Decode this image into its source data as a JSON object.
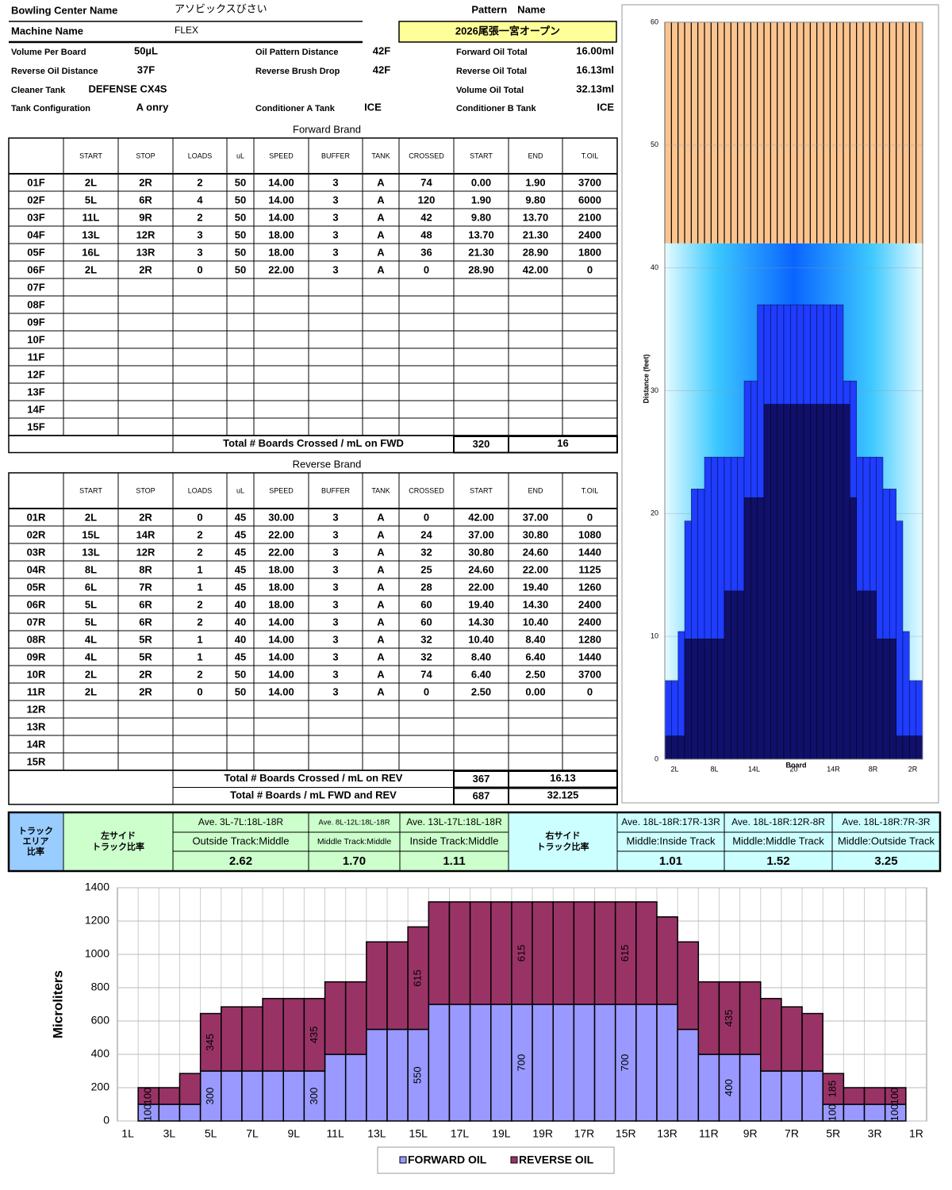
{
  "header": {
    "bowling_center": {
      "label": "Bowling Center Name",
      "value": "アソビックスびさい"
    },
    "machine": {
      "label": "Machine Name",
      "value": "FLEX"
    },
    "pattern": {
      "label": "Pattern　Name",
      "value": "2026尾張一宮オープン"
    },
    "fields": [
      {
        "label": "Volume Per Board",
        "value": "50µL"
      },
      {
        "label": "Oil Pattern Distance",
        "value": {
          "value": 42,
          "label": "42F"
        }
      },
      {
        "label": "Forward Oil Total",
        "value": "16.00ml"
      },
      {
        "label": "Reverse Oil Distance",
        "value": "37F"
      },
      {
        "label": "Reverse Brush Drop",
        "value": "42F"
      },
      {
        "label": "Reverse Oil Total",
        "value": "16.13ml"
      },
      {
        "label": "Cleaner Tank",
        "value": "DEFENSE CX4S"
      },
      {
        "label": "Volume Oil Total",
        "value": "32.13ml"
      },
      {
        "label": "Tank Configuration",
        "value": "A onry"
      },
      {
        "label": "Conditioner A Tank",
        "value": "ICE"
      },
      {
        "label": "Conditioner B Tank",
        "value": "ICE"
      }
    ]
  },
  "forward": {
    "title": "Forward Brand",
    "columns": [
      "START",
      "STOP",
      "LOADS",
      "uL",
      "SPEED",
      "BUFFER",
      "TANK",
      "CROSSED",
      "START",
      "END",
      "T.OIL"
    ],
    "rows": [
      [
        "01F",
        "2L",
        "2R",
        "2",
        "50",
        "14.00",
        "3",
        "A",
        "74",
        "0.00",
        "1.90",
        "3700"
      ],
      [
        "02F",
        "5L",
        "6R",
        "4",
        "50",
        "14.00",
        "3",
        "A",
        "120",
        "1.90",
        "9.80",
        "6000"
      ],
      [
        "03F",
        "11L",
        "9R",
        "2",
        "50",
        "14.00",
        "3",
        "A",
        "42",
        "9.80",
        "13.70",
        "2100"
      ],
      [
        "04F",
        "13L",
        "12R",
        "3",
        "50",
        "18.00",
        "3",
        "A",
        "48",
        "13.70",
        "21.30",
        "2400"
      ],
      [
        "05F",
        "16L",
        "13R",
        "3",
        "50",
        "18.00",
        "3",
        "A",
        "36",
        "21.30",
        "28.90",
        "1800"
      ],
      [
        "06F",
        "2L",
        "2R",
        "0",
        "50",
        "22.00",
        "3",
        "A",
        "0",
        "28.90",
        "42.00",
        "0"
      ],
      [
        "07F"
      ],
      [
        "08F"
      ],
      [
        "09F"
      ],
      [
        "10F"
      ],
      [
        "11F"
      ],
      [
        "12F"
      ],
      [
        "13F"
      ],
      [
        "14F"
      ],
      [
        "15F"
      ]
    ],
    "totals": [
      {
        "label": "Total # Boards Crossed / mL on FWD",
        "values": [
          "320",
          "16"
        ]
      }
    ]
  },
  "reverse": {
    "title": "Reverse Brand",
    "columns": [
      "START",
      "STOP",
      "LOADS",
      "uL",
      "SPEED",
      "BUFFER",
      "TANK",
      "CROSSED",
      "START",
      "END",
      "T.OIL"
    ],
    "rows": [
      [
        "01R",
        "2L",
        "2R",
        "0",
        "45",
        "30.00",
        "3",
        "A",
        "0",
        "42.00",
        "37.00",
        "0"
      ],
      [
        "02R",
        "15L",
        "14R",
        "2",
        "45",
        "22.00",
        "3",
        "A",
        "24",
        "37.00",
        "30.80",
        "1080"
      ],
      [
        "03R",
        "13L",
        "12R",
        "2",
        "45",
        "22.00",
        "3",
        "A",
        "32",
        "30.80",
        "24.60",
        "1440"
      ],
      [
        "04R",
        "8L",
        "8R",
        "1",
        "45",
        "18.00",
        "3",
        "A",
        "25",
        "24.60",
        "22.00",
        "1125"
      ],
      [
        "05R",
        "6L",
        "7R",
        "1",
        "45",
        "18.00",
        "3",
        "A",
        "28",
        "22.00",
        "19.40",
        "1260"
      ],
      [
        "06R",
        "5L",
        "6R",
        "2",
        "40",
        "18.00",
        "3",
        "A",
        "60",
        "19.40",
        "14.30",
        "2400"
      ],
      [
        "07R",
        "5L",
        "6R",
        "2",
        "40",
        "14.00",
        "3",
        "A",
        "60",
        "14.30",
        "10.40",
        "2400"
      ],
      [
        "08R",
        "4L",
        "5R",
        "1",
        "40",
        "14.00",
        "3",
        "A",
        "32",
        "10.40",
        "8.40",
        "1280"
      ],
      [
        "09R",
        "4L",
        "5R",
        "1",
        "45",
        "14.00",
        "3",
        "A",
        "32",
        "8.40",
        "6.40",
        "1440"
      ],
      [
        "10R",
        "2L",
        "2R",
        "2",
        "50",
        "14.00",
        "3",
        "A",
        "74",
        "6.40",
        "2.50",
        "3700"
      ],
      [
        "11R",
        "2L",
        "2R",
        "0",
        "50",
        "14.00",
        "3",
        "A",
        "0",
        "2.50",
        "0.00",
        "0"
      ],
      [
        "12R"
      ],
      [
        "13R"
      ],
      [
        "14R"
      ],
      [
        "15R"
      ]
    ],
    "totals": [
      {
        "label": "Total # Boards Crossed / mL on REV",
        "values": [
          "367",
          "16.13"
        ]
      },
      {
        "label": "Total # Boards / mL FWD and REV",
        "values": [
          "687",
          "32.125"
        ]
      }
    ]
  },
  "ratios": {
    "title": [
      "トラック",
      "エリア",
      "比率"
    ],
    "left": {
      "title": [
        "左サイド",
        "トラック比率"
      ],
      "columns": [
        {
          "range": "Ave. 3L-7L:18L-18R",
          "label": "Outside Track:Middle",
          "value": "2.62"
        },
        {
          "range": "Ave. 8L-12L:18L-18R",
          "label": "Middle Track:Middle",
          "value": "1.70"
        },
        {
          "range": "Ave. 13L-17L:18L-18R",
          "label": "Inside Track:Middle",
          "value": "1.11"
        }
      ]
    },
    "right": {
      "title": [
        "右サイド",
        "トラック比率"
      ],
      "columns": [
        {
          "range": "Ave. 18L-18R:17R-13R",
          "label": "Middle:Inside Track",
          "value": "1.01"
        },
        {
          "range": "Ave. 18L-18R:12R-8R",
          "label": "Middle:Middle Track",
          "value": "1.52"
        },
        {
          "range": "Ave. 18L-18R:7R-3R",
          "label": "Middle:Outside Track",
          "value": "3.25"
        }
      ]
    }
  },
  "chart_data": [
    {
      "type": "bar",
      "ylabel": "Distance (feet)",
      "xlabel": "Board",
      "categories": [
        null,
        "2L",
        null,
        null,
        null,
        null,
        null,
        "8L",
        null,
        null,
        null,
        null,
        null,
        "14L",
        null,
        null,
        null,
        null,
        null,
        "20",
        null,
        null,
        null,
        null,
        null,
        "14R",
        null,
        null,
        null,
        null,
        null,
        "8R",
        null,
        null,
        null,
        null,
        null,
        "2R",
        null
      ],
      "series": [
        {
          "color": "#1f3cff",
          "values": [
            6.4,
            6.4,
            10.4,
            19.4,
            22.0,
            22.0,
            24.6,
            24.6,
            24.6,
            24.6,
            24.6,
            24.6,
            30.8,
            30.8,
            37.0,
            37.0,
            37.0,
            37.0,
            37.0,
            37.0,
            37.0,
            37.0,
            37.0,
            37.0,
            37.0,
            37.0,
            37.0,
            30.8,
            30.8,
            24.6,
            24.6,
            24.6,
            24.6,
            22.0,
            22.0,
            19.4,
            10.4,
            6.4,
            6.4
          ]
        },
        {
          "color": "#10106a",
          "values": [
            1.9,
            1.9,
            1.9,
            9.8,
            9.8,
            9.8,
            9.8,
            9.8,
            9.8,
            13.7,
            13.7,
            13.7,
            21.3,
            21.3,
            21.3,
            28.9,
            28.9,
            28.9,
            28.9,
            28.9,
            28.9,
            28.9,
            28.9,
            28.9,
            28.9,
            28.9,
            28.9,
            28.9,
            21.3,
            13.7,
            13.7,
            13.7,
            9.8,
            9.8,
            9.8,
            1.9,
            1.9,
            1.9,
            1.9
          ]
        }
      ],
      "ylim": [
        0,
        60
      ],
      "yticks": [
        0,
        10,
        20,
        30,
        40,
        50,
        60
      ],
      "grid": true
    },
    {
      "type": "bar",
      "stacked": true,
      "ylabel": "Microliters",
      "legend": "bottom",
      "categories": [
        "1L",
        null,
        "3L",
        null,
        "5L",
        null,
        "7L",
        null,
        "9L",
        null,
        "11L",
        null,
        "13L",
        null,
        "15L",
        null,
        "17L",
        null,
        "19L",
        null,
        "19R",
        null,
        "17R",
        null,
        "15R",
        null,
        "13R",
        null,
        "11R",
        null,
        "9R",
        null,
        "7R",
        null,
        "5R",
        null,
        "3R",
        null,
        "1R"
      ],
      "series": [
        {
          "name": "FORWARD OIL",
          "color": "#9999ff",
          "values": [
            0,
            100,
            100,
            100,
            300,
            300,
            300,
            300,
            300,
            300,
            400,
            400,
            550,
            550,
            550,
            700,
            700,
            700,
            700,
            700,
            700,
            700,
            700,
            700,
            700,
            700,
            700,
            550,
            400,
            400,
            400,
            300,
            300,
            300,
            100,
            100,
            100,
            100,
            0
          ],
          "value_labels": [
            null,
            "100",
            null,
            null,
            "300",
            null,
            null,
            null,
            null,
            "300",
            null,
            null,
            null,
            null,
            "550",
            null,
            null,
            null,
            null,
            "700",
            null,
            null,
            null,
            null,
            "700",
            null,
            null,
            null,
            null,
            "400",
            null,
            null,
            null,
            null,
            "100",
            null,
            null,
            "100",
            null
          ]
        },
        {
          "name": "REVERSE OIL",
          "color": "#993366",
          "values": [
            0,
            100,
            100,
            185,
            345,
            385,
            385,
            435,
            435,
            435,
            435,
            435,
            525,
            525,
            615,
            615,
            615,
            615,
            615,
            615,
            615,
            615,
            615,
            615,
            615,
            615,
            525,
            525,
            435,
            435,
            435,
            435,
            385,
            345,
            185,
            100,
            100,
            100,
            0
          ],
          "value_labels": [
            null,
            "100",
            null,
            null,
            "345",
            null,
            null,
            null,
            null,
            "435",
            null,
            null,
            null,
            null,
            "615",
            null,
            null,
            null,
            null,
            "615",
            null,
            null,
            null,
            null,
            "615",
            null,
            null,
            null,
            null,
            "435",
            null,
            null,
            null,
            null,
            "185",
            null,
            null,
            "100",
            null
          ]
        }
      ],
      "ylim": [
        0,
        1400
      ],
      "yticks": [
        0,
        200,
        400,
        600,
        800,
        1000,
        1200,
        1400
      ],
      "grid": true
    }
  ]
}
